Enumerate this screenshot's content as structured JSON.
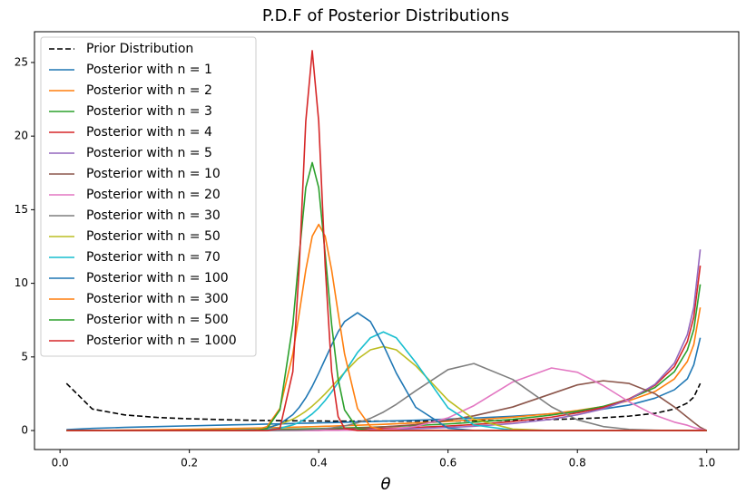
{
  "chart_data": {
    "type": "line",
    "title": "P.D.F of Posterior Distributions",
    "x_label": "θ",
    "x": [
      0.01,
      0.05,
      0.1,
      0.15,
      0.2,
      0.25,
      0.3,
      0.32,
      0.34,
      0.36,
      0.37,
      0.38,
      0.39,
      0.4,
      0.41,
      0.42,
      0.43,
      0.44,
      0.46,
      0.48,
      0.5,
      0.52,
      0.55,
      0.6,
      0.64,
      0.7,
      0.76,
      0.8,
      0.84,
      0.88,
      0.92,
      0.95,
      0.97,
      0.98,
      0.99,
      1.0
    ],
    "xlim": [
      -0.0395,
      1.0495
    ],
    "xticks": [
      {
        "value": 0,
        "label": "0.0"
      },
      {
        "value": 0.2,
        "label": "0.2"
      },
      {
        "value": 0.4,
        "label": "0.4"
      },
      {
        "value": 0.6,
        "label": "0.6"
      },
      {
        "value": 0.8,
        "label": "0.8"
      },
      {
        "value": 1,
        "label": "1.0"
      }
    ],
    "ylim": [
      -1.29,
      27.09
    ],
    "yticks": [
      0,
      5,
      10,
      15,
      20,
      25
    ],
    "legend": "upper left",
    "series": [
      {
        "name": "Prior Distribution",
        "color": "#000000",
        "linestyle": "dashed",
        "values": [
          3.2,
          1.46,
          1.06,
          0.89,
          0.8,
          0.74,
          0.69,
          0.68,
          0.67,
          0.66,
          0.66,
          0.65,
          0.65,
          0.65,
          0.65,
          0.64,
          0.64,
          0.64,
          0.64,
          0.64,
          0.64,
          0.64,
          0.64,
          0.65,
          0.66,
          0.69,
          0.75,
          0.8,
          0.87,
          0.98,
          1.17,
          1.46,
          1.87,
          2.27,
          3.2,
          null
        ]
      },
      {
        "name": "Posterior with n = 1",
        "color": "#1f77b4",
        "values": [
          0.064,
          0.146,
          0.212,
          0.267,
          0.318,
          0.368,
          0.416,
          0.436,
          0.456,
          0.477,
          0.487,
          0.497,
          0.508,
          0.52,
          0.53,
          0.54,
          0.55,
          0.56,
          0.59,
          0.61,
          0.64,
          0.66,
          0.7,
          0.78,
          0.85,
          0.97,
          1.14,
          1.27,
          1.46,
          1.73,
          2.2,
          2.77,
          3.51,
          4.46,
          6.3,
          null
        ]
      },
      {
        "name": "Posterior with n = 2",
        "color": "#ff7f0e",
        "values": [
          0.001,
          0.01,
          0.028,
          0.053,
          0.085,
          0.123,
          0.166,
          0.186,
          0.207,
          0.229,
          0.241,
          0.252,
          0.265,
          0.277,
          0.291,
          0.303,
          0.317,
          0.331,
          0.36,
          0.392,
          0.425,
          0.46,
          0.516,
          0.625,
          0.724,
          0.908,
          1.15,
          1.36,
          1.63,
          2.03,
          2.65,
          3.51,
          4.69,
          5.84,
          8.36,
          null
        ]
      },
      {
        "name": "Posterior with n = 3",
        "color": "#2ca02c",
        "values": [
          0,
          0.0006,
          0.0034,
          0.0095,
          0.02,
          0.037,
          0.06,
          0.071,
          0.084,
          0.099,
          0.107,
          0.115,
          0.124,
          0.133,
          0.143,
          0.153,
          0.164,
          0.175,
          0.199,
          0.226,
          0.255,
          0.287,
          0.341,
          0.45,
          0.556,
          0.763,
          1.05,
          1.31,
          1.64,
          2.14,
          2.92,
          4.0,
          5.46,
          6.87,
          9.93,
          null
        ]
      },
      {
        "name": "Posterior with n = 4",
        "color": "#d62728",
        "values": [
          0,
          0,
          0.0004,
          0.0016,
          0.0046,
          0.0106,
          0.021,
          0.026,
          0.033,
          0.041,
          0.045,
          0.05,
          0.055,
          0.061,
          0.067,
          0.073,
          0.081,
          0.088,
          0.105,
          0.124,
          0.146,
          0.17,
          0.214,
          0.308,
          0.406,
          0.61,
          0.911,
          1.2,
          1.57,
          2.15,
          3.07,
          4.34,
          6.04,
          7.69,
          11.2,
          null
        ]
      },
      {
        "name": "Posterior with n = 5",
        "color": "#9467bd",
        "values": [
          0,
          0,
          0,
          0.0003,
          0.001,
          0.003,
          0.007,
          0.009,
          0.012,
          0.016,
          0.019,
          0.021,
          0.024,
          0.027,
          0.031,
          0.034,
          0.039,
          0.043,
          0.054,
          0.066,
          0.081,
          0.098,
          0.131,
          0.205,
          0.289,
          0.474,
          0.769,
          1.07,
          1.47,
          2.1,
          3.14,
          4.58,
          6.51,
          8.37,
          12.3,
          null
        ]
      },
      {
        "name": "Posterior with n = 10",
        "color": "#8c564b",
        "values": [
          0,
          0,
          0,
          0,
          0,
          0,
          0,
          0.01,
          0.01,
          0.02,
          0.03,
          0.03,
          0.04,
          0.05,
          0.06,
          0.08,
          0.1,
          0.12,
          0.16,
          0.2,
          0.25,
          0.31,
          0.4,
          0.7,
          1.0,
          1.6,
          2.5,
          3.1,
          3.38,
          3.2,
          2.5,
          1.6,
          0.9,
          0.55,
          0.22,
          0
        ]
      },
      {
        "name": "Posterior with n = 20",
        "color": "#e377c2",
        "values": [
          0,
          0,
          0,
          0,
          0,
          0,
          0,
          0,
          0,
          0,
          0,
          0,
          0,
          0,
          0.01,
          0.01,
          0.01,
          0.02,
          0.02,
          0.04,
          0.07,
          0.12,
          0.28,
          0.86,
          1.69,
          3.3,
          4.25,
          3.96,
          3.05,
          1.95,
          1.04,
          0.57,
          0.36,
          0.2,
          0.1,
          0
        ]
      },
      {
        "name": "Posterior with n = 30",
        "color": "#7f7f7f",
        "values": [
          0,
          0,
          0,
          0,
          0,
          0,
          0,
          0,
          0.01,
          0.02,
          0.03,
          0.05,
          0.07,
          0.1,
          0.13,
          0.18,
          0.24,
          0.31,
          0.52,
          0.83,
          1.25,
          1.78,
          2.7,
          4.14,
          4.55,
          3.47,
          1.61,
          0.73,
          0.27,
          0.08,
          0.02,
          0,
          0,
          0,
          0,
          0
        ]
      },
      {
        "name": "Posterior with n = 50",
        "color": "#bcbd22",
        "values": [
          0,
          0,
          0,
          0,
          0,
          0.01,
          0.1,
          0.21,
          0.42,
          0.77,
          1.02,
          1.31,
          1.66,
          2.06,
          2.49,
          2.97,
          3.46,
          3.94,
          4.85,
          5.48,
          5.7,
          5.48,
          4.4,
          2.06,
          0.77,
          0.1,
          0,
          0,
          0,
          0,
          0,
          0,
          0,
          0,
          0,
          0
        ]
      },
      {
        "name": "Posterior with n = 70",
        "color": "#17becf",
        "values": [
          0,
          0,
          0,
          0,
          0,
          0,
          0.02,
          0.06,
          0.16,
          0.38,
          0.56,
          0.81,
          1.13,
          1.54,
          2.04,
          2.62,
          3.27,
          3.95,
          5.3,
          6.3,
          6.7,
          6.3,
          4.63,
          1.54,
          0.38,
          0.02,
          0,
          0,
          0,
          0,
          0,
          0,
          0,
          0,
          0,
          0
        ]
      },
      {
        "name": "Posterior with n = 100",
        "color": "#1f77b4",
        "values": [
          0,
          0,
          0,
          0,
          0,
          0,
          0.05,
          0.16,
          0.45,
          1.08,
          1.58,
          2.22,
          3.0,
          3.9,
          4.85,
          5.8,
          6.7,
          7.4,
          8.0,
          7.4,
          5.8,
          3.9,
          1.58,
          0.16,
          0.01,
          0,
          0,
          0,
          0,
          0,
          0,
          0,
          0,
          0,
          0,
          0
        ]
      },
      {
        "name": "Posterior with n = 300",
        "color": "#ff7f0e",
        "values": [
          0,
          0,
          0,
          0,
          0,
          0,
          0.01,
          0.26,
          1.5,
          5.2,
          8.0,
          10.9,
          13.2,
          14,
          13.2,
          10.9,
          8.0,
          5.2,
          1.5,
          0.26,
          0.03,
          0,
          0,
          0,
          0,
          0,
          0,
          0,
          0,
          0,
          0,
          0,
          0,
          0,
          0,
          0
        ]
      },
      {
        "name": "Posterior with n = 500",
        "color": "#2ca02c",
        "values": [
          0,
          0,
          0,
          0,
          0,
          0,
          0,
          0.12,
          1.4,
          7.2,
          12,
          16.5,
          18.2,
          16.5,
          12,
          7.2,
          3.5,
          1.4,
          0.12,
          0,
          0,
          0,
          0,
          0,
          0,
          0,
          0,
          0,
          0,
          0,
          0,
          0,
          0,
          0,
          0,
          0
        ]
      },
      {
        "name": "Posterior with n = 1000",
        "color": "#d62728",
        "values": [
          0,
          0,
          0,
          0,
          0,
          0,
          0,
          0,
          0.14,
          4,
          11.2,
          21,
          25.8,
          21,
          11.2,
          4,
          0.95,
          0.14,
          0,
          0,
          0,
          0,
          0,
          0,
          0,
          0,
          0,
          0,
          0,
          0,
          0,
          0,
          0,
          0,
          0,
          0
        ]
      }
    ]
  }
}
